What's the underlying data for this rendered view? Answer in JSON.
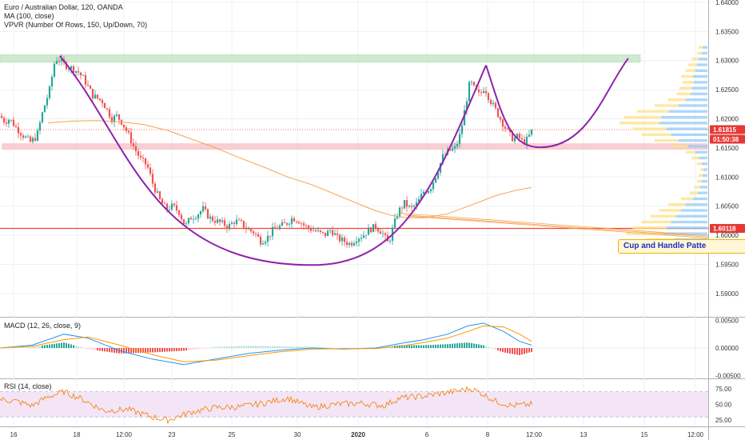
{
  "legend": {
    "symbol": "Euro / Australian Dollar, 120, OANDA",
    "ma": "MA (100, close)",
    "vpvr": "VPVR (Number Of Rows, 150, Up/Down, 70)",
    "macd": "MACD (12, 26, close, 9)",
    "rsi": "RSI (14, close)"
  },
  "annotation": "Cup and Handle Patte",
  "price_tags": {
    "last": "1.61815",
    "countdown": "01:50:38",
    "support": "1.60118"
  },
  "colors": {
    "up": "#26a69a",
    "down": "#ef5350",
    "ma": "#f7a350",
    "pattern": "#8e24aa",
    "resistance_zone": "#c8e6c9",
    "support_zone": "#f8c8cc",
    "support_line": "#f44336",
    "vp_up": "#90caf9",
    "vp_down": "#ffe082",
    "macd_line": "#2196f3",
    "signal_line": "#ff9800",
    "rsi_line": "#f57c00",
    "rsi_band": "#f3e5f5"
  },
  "chart_data": [
    {
      "type": "candlestick",
      "title": "Euro / Australian Dollar, 120, OANDA",
      "x_ticks": [
        "16",
        "18",
        "12:00",
        "23",
        "25",
        "30",
        "2020",
        "6",
        "8",
        "12:00",
        "13",
        "15",
        "12:00"
      ],
      "y_ticks": [
        "1.64000",
        "1.63500",
        "1.63000",
        "1.62500",
        "1.62000",
        "1.61500",
        "1.61000",
        "1.60500",
        "1.60000",
        "1.59500",
        "1.59000"
      ],
      "ylim": [
        1.586,
        1.6404
      ],
      "zones": [
        {
          "name": "resistance",
          "from": 1.6297,
          "to": 1.631
        },
        {
          "name": "support",
          "from": 1.6148,
          "to": 1.6157
        }
      ],
      "support_line": 1.60118,
      "last_price": 1.61815,
      "price_path": [
        [
          0,
          1.6205
        ],
        [
          6,
          1.6195
        ],
        [
          12,
          1.62
        ],
        [
          20,
          1.6185
        ],
        [
          30,
          1.617
        ],
        [
          38,
          1.616
        ],
        [
          46,
          1.617
        ],
        [
          54,
          1.6215
        ],
        [
          62,
          1.625
        ],
        [
          68,
          1.6295
        ],
        [
          72,
          1.6305
        ],
        [
          78,
          1.6295
        ],
        [
          85,
          1.629
        ],
        [
          92,
          1.6285
        ],
        [
          98,
          1.628
        ],
        [
          104,
          1.627
        ],
        [
          110,
          1.6255
        ],
        [
          116,
          1.624
        ],
        [
          122,
          1.6235
        ],
        [
          128,
          1.623
        ],
        [
          134,
          1.6215
        ],
        [
          140,
          1.62
        ],
        [
          146,
          1.6205
        ],
        [
          152,
          1.6195
        ],
        [
          160,
          1.6175
        ],
        [
          168,
          1.615
        ],
        [
          176,
          1.613
        ],
        [
          184,
          1.612
        ],
        [
          192,
          1.6085
        ],
        [
          200,
          1.606
        ],
        [
          208,
          1.6045
        ],
        [
          216,
          1.605
        ],
        [
          224,
          1.604
        ],
        [
          232,
          1.6015
        ],
        [
          238,
          1.603
        ],
        [
          246,
          1.6035
        ],
        [
          254,
          1.6045
        ],
        [
          262,
          1.603
        ],
        [
          270,
          1.6025
        ],
        [
          278,
          1.602
        ],
        [
          286,
          1.6015
        ],
        [
          294,
          1.6025
        ],
        [
          302,
          1.602
        ],
        [
          310,
          1.601
        ],
        [
          318,
          1.6005
        ],
        [
          326,
          1.599
        ],
        [
          334,
          1.5995
        ],
        [
          342,
          1.601
        ],
        [
          350,
          1.6015
        ],
        [
          358,
          1.602
        ],
        [
          366,
          1.603
        ],
        [
          374,
          1.6025
        ],
        [
          382,
          1.6015
        ],
        [
          390,
          1.601
        ],
        [
          398,
          1.6005
        ],
        [
          406,
          1.6
        ],
        [
          414,
          1.601
        ],
        [
          422,
          1.5995
        ],
        [
          430,
          1.599
        ],
        [
          438,
          1.5985
        ],
        [
          446,
          1.5995
        ],
        [
          454,
          1.6
        ],
        [
          462,
          1.601
        ],
        [
          470,
          1.6015
        ],
        [
          478,
          1.6005
        ],
        [
          486,
          1.5985
        ],
        [
          492,
          1.6015
        ],
        [
          498,
          1.604
        ],
        [
          506,
          1.6055
        ],
        [
          514,
          1.6045
        ],
        [
          522,
          1.6055
        ],
        [
          530,
          1.6075
        ],
        [
          538,
          1.608
        ],
        [
          546,
          1.6105
        ],
        [
          554,
          1.6135
        ],
        [
          562,
          1.6145
        ],
        [
          570,
          1.615
        ],
        [
          576,
          1.6175
        ],
        [
          582,
          1.622
        ],
        [
          588,
          1.6265
        ],
        [
          594,
          1.625
        ],
        [
          600,
          1.624
        ],
        [
          606,
          1.6255
        ],
        [
          612,
          1.6235
        ],
        [
          618,
          1.622
        ],
        [
          624,
          1.6205
        ],
        [
          630,
          1.619
        ],
        [
          636,
          1.6175
        ],
        [
          642,
          1.6165
        ],
        [
          648,
          1.617
        ],
        [
          654,
          1.616
        ],
        [
          660,
          1.6165
        ],
        [
          666,
          1.61815
        ]
      ],
      "ma_path": [
        [
          60,
          1.6193
        ],
        [
          90,
          1.6196
        ],
        [
          120,
          1.6197
        ],
        [
          150,
          1.6195
        ],
        [
          180,
          1.619
        ],
        [
          210,
          1.618
        ],
        [
          240,
          1.6165
        ],
        [
          270,
          1.615
        ],
        [
          300,
          1.6133
        ],
        [
          330,
          1.6117
        ],
        [
          360,
          1.61
        ],
        [
          390,
          1.6087
        ],
        [
          420,
          1.607
        ],
        [
          450,
          1.6053
        ],
        [
          470,
          1.6042
        ],
        [
          490,
          1.6034
        ],
        [
          510,
          1.603
        ],
        [
          530,
          1.603
        ],
        [
          560,
          1.6037
        ],
        [
          590,
          1.6052
        ],
        [
          620,
          1.6068
        ],
        [
          645,
          1.6077
        ],
        [
          665,
          1.6082
        ]
      ],
      "cup": {
        "left": [
          75,
          1.6308
        ],
        "bottom": [
          398,
          1.5949
        ],
        "rim": [
          608,
          1.6292
        ]
      },
      "handle": {
        "start": [
          608,
          1.6292
        ],
        "low": [
          676,
          1.6151
        ],
        "target": [
          786,
          1.6304
        ]
      },
      "volume_profile": {
        "x_right": 885,
        "max_width": 110,
        "note": "values are relative row volume 0-1 by price",
        "rows": [
          [
            1.632,
            0.1
          ],
          [
            1.631,
            0.12
          ],
          [
            1.63,
            0.18
          ],
          [
            1.629,
            0.22
          ],
          [
            1.628,
            0.25
          ],
          [
            1.627,
            0.3
          ],
          [
            1.626,
            0.28
          ],
          [
            1.625,
            0.32
          ],
          [
            1.624,
            0.35
          ],
          [
            1.623,
            0.45
          ],
          [
            1.622,
            0.6
          ],
          [
            1.621,
            0.8
          ],
          [
            1.62,
            0.95
          ],
          [
            1.619,
            1.0
          ],
          [
            1.618,
            0.85
          ],
          [
            1.617,
            0.75
          ],
          [
            1.616,
            0.6
          ],
          [
            1.615,
            0.4
          ],
          [
            1.614,
            0.25
          ],
          [
            1.613,
            0.18
          ],
          [
            1.612,
            0.12
          ],
          [
            1.611,
            0.08
          ],
          [
            1.61,
            0.1
          ],
          [
            1.609,
            0.12
          ],
          [
            1.608,
            0.15
          ],
          [
            1.607,
            0.2
          ],
          [
            1.606,
            0.3
          ],
          [
            1.605,
            0.45
          ],
          [
            1.604,
            0.55
          ],
          [
            1.603,
            0.65
          ],
          [
            1.602,
            0.75
          ],
          [
            1.601,
            0.85
          ],
          [
            1.6,
            0.92
          ],
          [
            1.599,
            0.7
          ],
          [
            1.598,
            0.4
          ],
          [
            1.597,
            0.15
          ]
        ]
      }
    },
    {
      "type": "macd",
      "title": "MACD (12, 26, close, 9)",
      "y_ticks": [
        "0.00500",
        "0.00000",
        "-0.00500"
      ],
      "ylim": [
        -0.0055,
        0.0055
      ],
      "macd_path": [
        [
          0,
          0.0
        ],
        [
          40,
          0.0005
        ],
        [
          80,
          0.0025
        ],
        [
          110,
          0.0018
        ],
        [
          150,
          -0.0005
        ],
        [
          190,
          -0.002
        ],
        [
          230,
          -0.003
        ],
        [
          270,
          -0.002
        ],
        [
          310,
          -0.001
        ],
        [
          350,
          -0.0004
        ],
        [
          390,
          0.0
        ],
        [
          430,
          -0.0002
        ],
        [
          470,
          0.0
        ],
        [
          500,
          0.0008
        ],
        [
          530,
          0.0015
        ],
        [
          560,
          0.0025
        ],
        [
          585,
          0.004
        ],
        [
          605,
          0.0045
        ],
        [
          630,
          0.003
        ],
        [
          650,
          0.0012
        ],
        [
          665,
          0.0005
        ]
      ],
      "signal_path": [
        [
          0,
          0.0
        ],
        [
          40,
          0.0003
        ],
        [
          80,
          0.0015
        ],
        [
          110,
          0.002
        ],
        [
          150,
          0.0005
        ],
        [
          190,
          -0.0012
        ],
        [
          230,
          -0.0025
        ],
        [
          270,
          -0.0022
        ],
        [
          310,
          -0.0014
        ],
        [
          350,
          -0.0007
        ],
        [
          390,
          -0.0002
        ],
        [
          430,
          -0.0001
        ],
        [
          470,
          -0.0001
        ],
        [
          500,
          0.0003
        ],
        [
          530,
          0.001
        ],
        [
          560,
          0.0018
        ],
        [
          585,
          0.003
        ],
        [
          605,
          0.004
        ],
        [
          630,
          0.0038
        ],
        [
          650,
          0.0025
        ],
        [
          665,
          0.0012
        ]
      ]
    },
    {
      "type": "rsi",
      "title": "RSI (14, close)",
      "y_ticks": [
        "75.00",
        "50.00",
        "25.00"
      ],
      "ylim": [
        15,
        90
      ],
      "band": [
        30,
        70
      ],
      "rsi_path": [
        [
          0,
          58
        ],
        [
          20,
          55
        ],
        [
          40,
          48
        ],
        [
          60,
          62
        ],
        [
          80,
          70
        ],
        [
          100,
          60
        ],
        [
          130,
          40
        ],
        [
          160,
          42
        ],
        [
          190,
          30
        ],
        [
          210,
          25
        ],
        [
          240,
          38
        ],
        [
          270,
          45
        ],
        [
          300,
          46
        ],
        [
          330,
          52
        ],
        [
          360,
          60
        ],
        [
          390,
          45
        ],
        [
          420,
          50
        ],
        [
          450,
          52
        ],
        [
          480,
          48
        ],
        [
          500,
          60
        ],
        [
          530,
          63
        ],
        [
          555,
          68
        ],
        [
          575,
          72
        ],
        [
          590,
          75
        ],
        [
          605,
          66
        ],
        [
          620,
          55
        ],
        [
          640,
          48
        ],
        [
          665,
          50
        ]
      ]
    }
  ]
}
